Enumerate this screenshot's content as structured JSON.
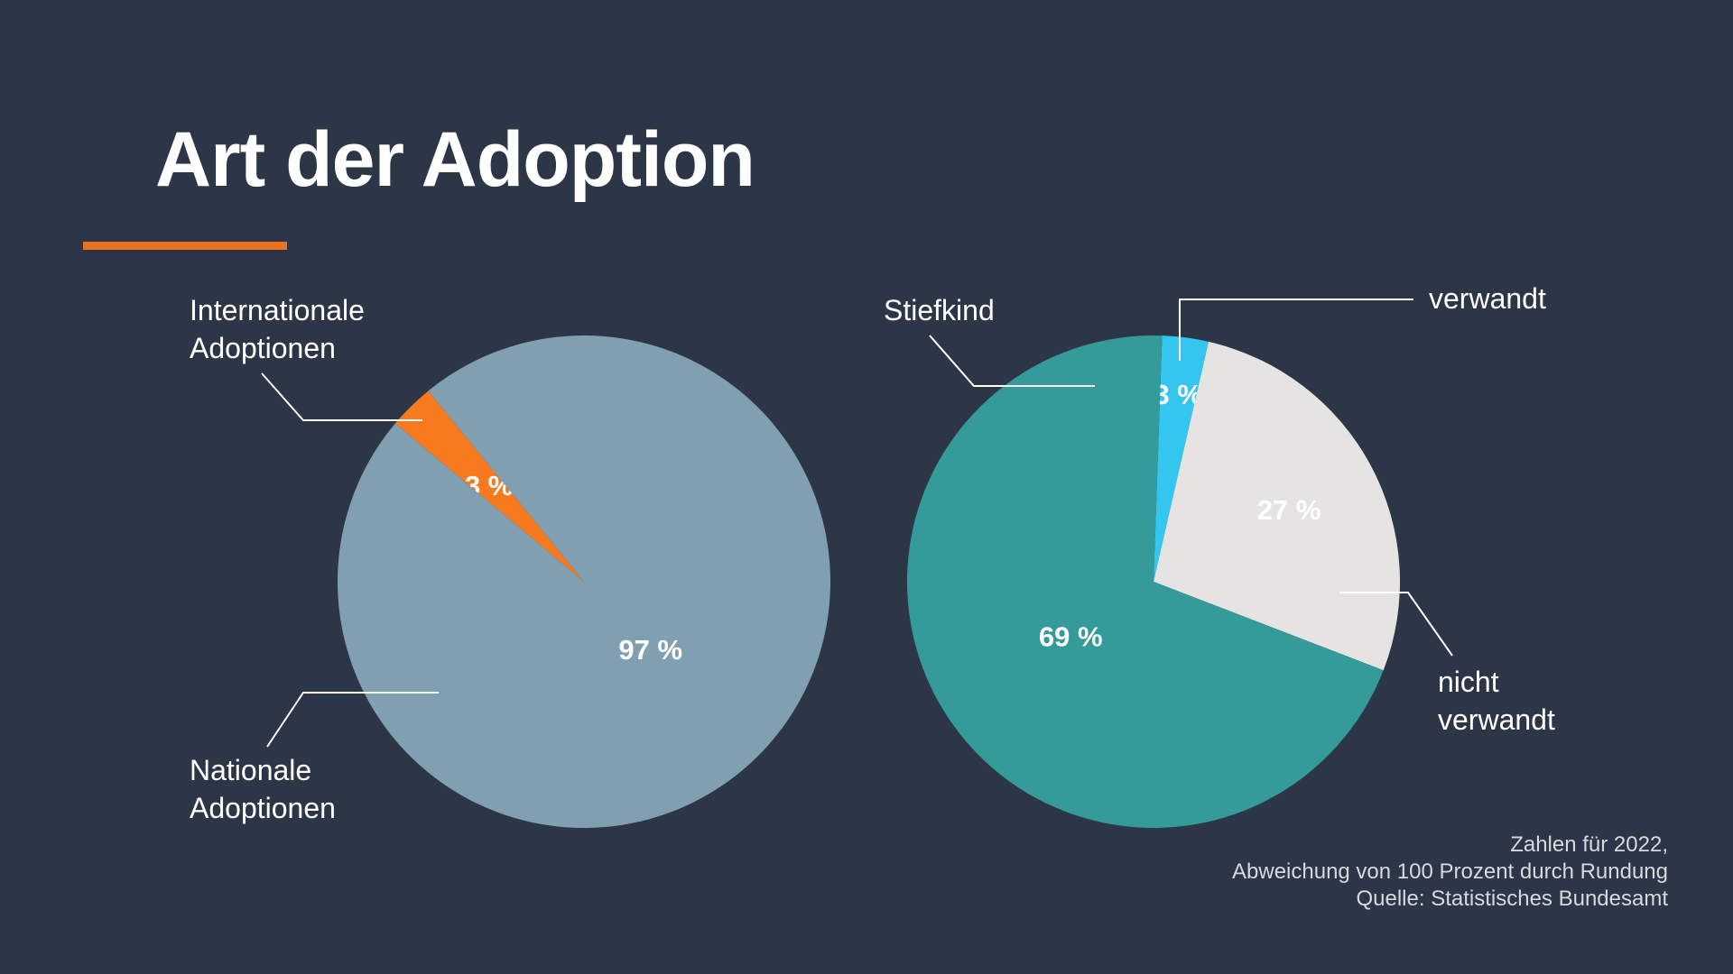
{
  "title": "Art der Adoption",
  "colors": {
    "background": "#2d3646",
    "accent": "#e8741f",
    "national": "#80a0b1",
    "international": "#f77b1e",
    "stiefkind": "#349a9a",
    "verwandt": "#35c6f0",
    "nicht_verwandt": "#e5e4e2"
  },
  "chart_data": [
    {
      "type": "pie",
      "slices": [
        {
          "label": "Internationale Adoptionen",
          "value": 3,
          "value_label": "3 %",
          "color": "#f77b1e"
        },
        {
          "label": "Nationale Adoptionen",
          "value": 97,
          "value_label": "97 %",
          "color": "#80a0b1"
        }
      ]
    },
    {
      "type": "pie",
      "slices": [
        {
          "label": "verwandt",
          "value": 3,
          "value_label": "3 %",
          "color": "#35c6f0"
        },
        {
          "label": "nicht verwandt",
          "value": 27,
          "value_label": "27 %",
          "color": "#e5e4e2"
        },
        {
          "label": "Stiefkind",
          "value": 69,
          "value_label": "69 %",
          "color": "#349a9a"
        }
      ]
    }
  ],
  "labels": {
    "international_line1": "Internationale",
    "international_line2": "Adoptionen",
    "national_line1": "Nationale",
    "national_line2": "Adoptionen",
    "stiefkind": "Stiefkind",
    "verwandt": "verwandt",
    "nicht_verwandt_line1": "nicht",
    "nicht_verwandt_line2": "verwandt"
  },
  "note": {
    "line1": "Zahlen für 2022,",
    "line2": "Abweichung von 100 Prozent durch Rundung",
    "line3": "Quelle: Statistisches Bundesamt"
  }
}
